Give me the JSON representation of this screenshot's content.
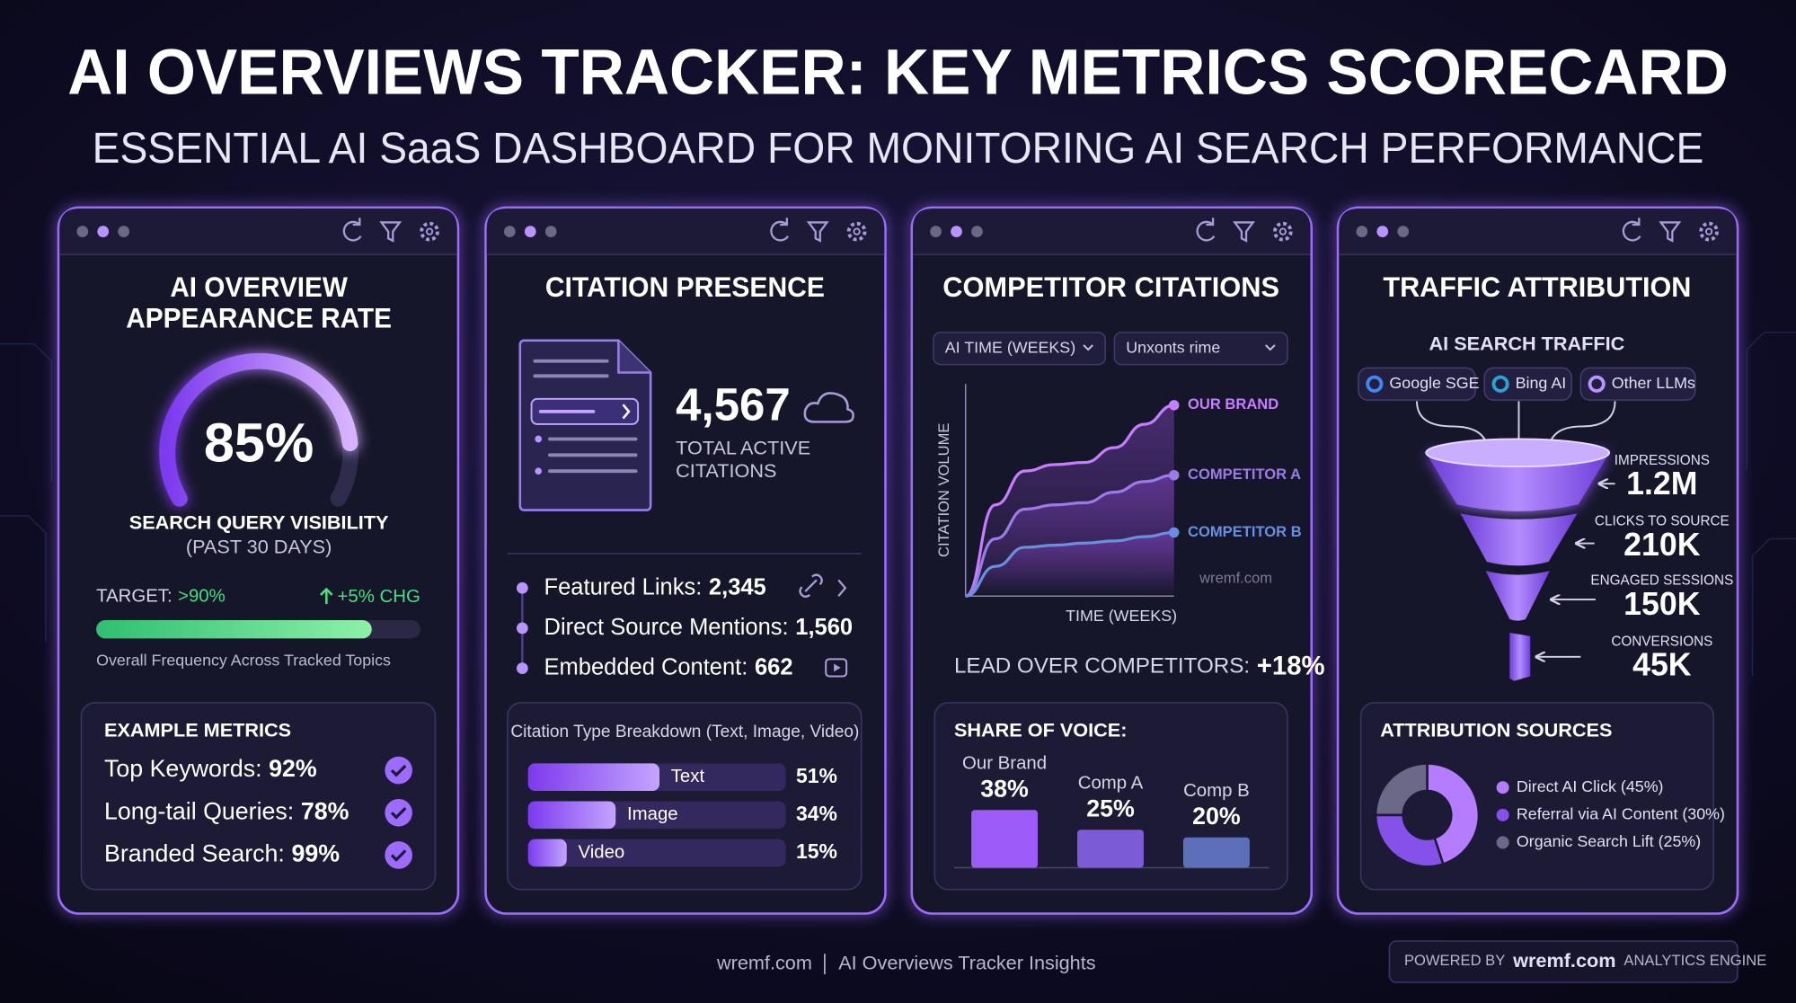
{
  "header": {
    "title": "AI OVERVIEWS TRACKER: KEY METRICS SCORECARD",
    "subtitle": "ESSENTIAL AI SaaS DASHBOARD FOR MONITORING AI SEARCH PERFORMANCE"
  },
  "appearance": {
    "title_lines": [
      "AI OVERVIEW",
      "APPEARANCE RATE"
    ],
    "gauge": {
      "value": 85,
      "label": "85%",
      "ylim": [
        0,
        100
      ]
    },
    "metric": "SEARCH QUERY VISIBILITY",
    "period": "(PAST 30 DAYS)",
    "target_label": "TARGET:",
    "target_value": ">90%",
    "change": "+5% CHG",
    "bar_caption": "Overall Frequency Across Tracked Topics",
    "examples": {
      "title": "EXAMPLE METRICS",
      "items": [
        {
          "label": "Top Keywords:",
          "value": "92%"
        },
        {
          "label": "Long-tail Queries:",
          "value": "78%"
        },
        {
          "label": "Branded Search:",
          "value": "99%"
        }
      ]
    }
  },
  "citations": {
    "title": "CITATION PRESENCE",
    "total": "4,567",
    "total_caption_lines": [
      "TOTAL ACTIVE",
      "CITATIONS"
    ],
    "items": [
      {
        "label": "Featured Links:",
        "value": "2,345"
      },
      {
        "label": "Direct Source Mentions:",
        "value": "1,560"
      },
      {
        "label": "Embedded Content:",
        "value": "662"
      }
    ],
    "breakdown": {
      "type": "bar",
      "title": "Citation Type Breakdown (Text, Image, Video)",
      "categories": [
        "Text",
        "Image",
        "Video"
      ],
      "values": [
        51,
        34,
        15
      ],
      "value_labels": [
        "51%",
        "34%",
        "15%"
      ],
      "xlim": [
        0,
        100
      ],
      "color": "#8b5cf6"
    }
  },
  "competitors": {
    "title": "COMPETITOR CITATIONS",
    "filters": [
      "AI TIME (WEEKS)",
      "Unxonts rime"
    ],
    "chart": {
      "type": "line",
      "ylabel": "CITATION VOLUME",
      "xlabel": "TIME (WEEKS)",
      "watermark": "wremf.com",
      "x": [
        0,
        1,
        2,
        3,
        4,
        5,
        6,
        7
      ],
      "xlim": [
        0,
        7
      ],
      "ylim": [
        0,
        100
      ],
      "series": [
        {
          "name": "OUR BRAND",
          "color": "#c77dff",
          "values": [
            0,
            43,
            59,
            62,
            63,
            70,
            81,
            90
          ]
        },
        {
          "name": "COMPETITOR A",
          "color": "#9b7be8",
          "values": [
            0,
            27,
            41,
            43,
            44,
            49,
            54,
            57
          ]
        },
        {
          "name": "COMPETITOR B",
          "color": "#6b8fe0",
          "values": [
            0,
            14,
            23,
            24,
            25,
            26,
            28,
            30
          ]
        }
      ]
    },
    "lead_label": "LEAD OVER COMPETITORS:",
    "lead_value": "+18%",
    "share": {
      "type": "bar",
      "title": "SHARE OF VOICE:",
      "categories": [
        "Our Brand",
        "Comp A",
        "Comp B"
      ],
      "values": [
        38,
        25,
        20
      ],
      "value_labels": [
        "38%",
        "25%",
        "20%"
      ],
      "ylim": [
        0,
        40
      ],
      "colors": [
        "#9d5cf7",
        "#7b5bd6",
        "#5d6fb8"
      ]
    }
  },
  "traffic": {
    "title": "TRAFFIC ATTRIBUTION",
    "subtitle": "AI SEARCH TRAFFIC",
    "sources": [
      "Google SGE",
      "Bing AI",
      "Other LLMs"
    ],
    "funnel": [
      {
        "label": "IMPRESSIONS",
        "value": "1.2M"
      },
      {
        "label": "CLICKS TO SOURCE",
        "value": "210K"
      },
      {
        "label": "ENGAGED SESSIONS",
        "value": "150K"
      },
      {
        "label": "CONVERSIONS",
        "value": "45K"
      }
    ],
    "attribution": {
      "type": "pie",
      "title": "ATTRIBUTION SOURCES",
      "labels": [
        "Direct AI Click (45%)",
        "Referral via AI Content (30%)",
        "Organic Search Lift (25%)"
      ],
      "values": [
        45,
        30,
        25
      ],
      "colors": [
        "#b67cff",
        "#8452e8",
        "#6c6888"
      ]
    }
  },
  "footer": {
    "site": "wremf.com",
    "caption": "AI Overviews Tracker Insights",
    "powered_prefix": "POWERED BY",
    "powered_brand": "wremf.com",
    "powered_suffix": "ANALYTICS ENGINE"
  }
}
